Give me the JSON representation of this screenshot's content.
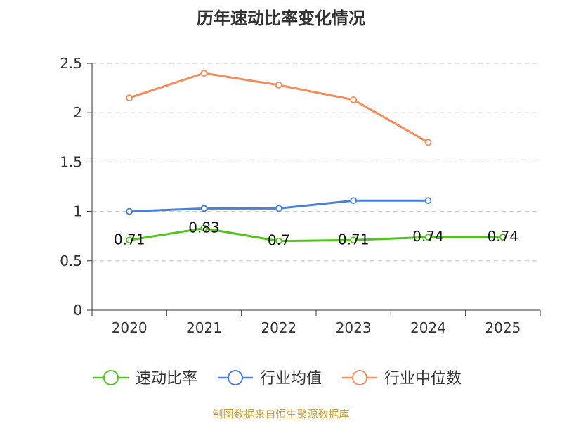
{
  "chart_data": {
    "type": "line",
    "title": "历年速动比率变化情况",
    "categories": [
      "2020",
      "2021",
      "2022",
      "2023",
      "2024",
      "2025"
    ],
    "ylim": [
      0,
      2.5
    ],
    "yticks": [
      "0",
      "0.5",
      "1",
      "1.5",
      "2",
      "2.5"
    ],
    "grid": true,
    "legend_position": "bottom",
    "series": [
      {
        "name": "速动比率",
        "color": "#52c41a",
        "values": [
          0.71,
          0.83,
          0.7,
          0.71,
          0.74,
          0.74
        ],
        "labels": [
          "0.71",
          "0.83",
          "0.7",
          "0.71",
          "0.74",
          "0.74"
        ]
      },
      {
        "name": "行业均值",
        "color": "#4a7fd9",
        "values": [
          1.0,
          1.03,
          1.03,
          1.11,
          1.11,
          null
        ]
      },
      {
        "name": "行业中位数",
        "color": "#f58c5a",
        "values": [
          2.15,
          2.4,
          2.28,
          2.13,
          1.7,
          null
        ]
      }
    ]
  },
  "source_note": "制图数据来自恒生聚源数据库"
}
